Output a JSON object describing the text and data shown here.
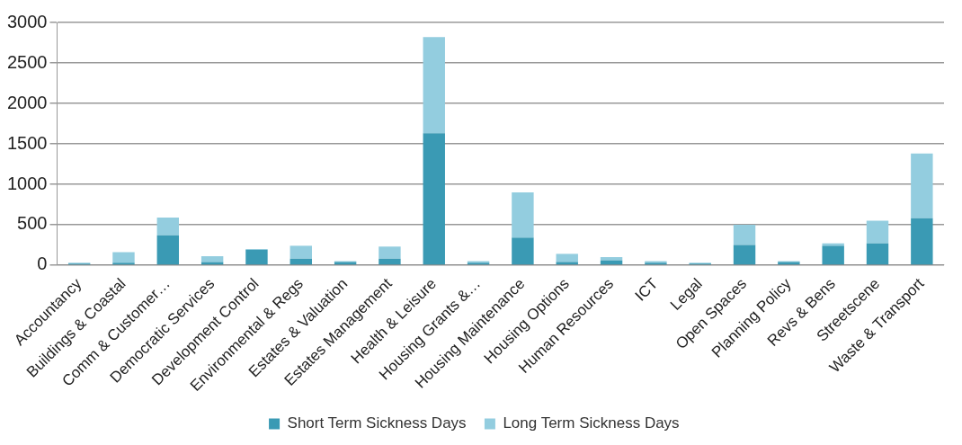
{
  "chart_data": {
    "type": "bar",
    "stacked": true,
    "categories": [
      "Accountancy",
      "Buildings & Coastal",
      "Comm & Customer…",
      "Democratic Services",
      "Development Control",
      "Environmental & Regs",
      "Estates & Valuation",
      "Estates Management",
      "Health & Leisure",
      "Housing Grants &…",
      "Housing Maintenance",
      "Housing Options",
      "Human Resources",
      "ICT",
      "Legal",
      "Open Spaces",
      "Planning Policy",
      "Revs & Bens",
      "Streetscene",
      "Waste & Transport"
    ],
    "series": [
      {
        "name": "Short Term Sickness Days",
        "color": "#3a9ab4",
        "values": [
          20,
          30,
          370,
          40,
          190,
          80,
          40,
          80,
          1630,
          30,
          340,
          40,
          60,
          30,
          20,
          250,
          40,
          240,
          270,
          580
        ]
      },
      {
        "name": "Long Term Sickness Days",
        "color": "#93cddf",
        "values": [
          10,
          130,
          220,
          70,
          10,
          160,
          10,
          150,
          1190,
          20,
          560,
          100,
          40,
          20,
          10,
          250,
          10,
          30,
          280,
          800
        ]
      }
    ],
    "ylim": [
      0,
      3000
    ],
    "yticks": [
      0,
      500,
      1000,
      1500,
      2000,
      2500,
      3000
    ],
    "grid": "y",
    "legend": "bottom"
  }
}
